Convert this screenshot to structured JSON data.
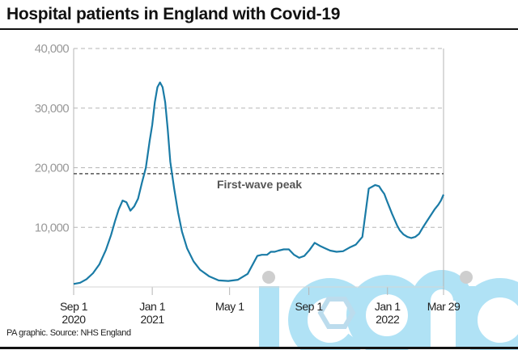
{
  "title": "Hospital patients in England with Covid-19",
  "source": "PA graphic. Source: NHS England",
  "watermark": "iconic",
  "colors": {
    "line": "#1a7ba6",
    "grid": "#b5b5b5",
    "reference": "#555555",
    "watermark": "#a8dff5"
  },
  "chart_data": {
    "type": "line",
    "title": "Hospital patients in England with Covid-19",
    "xlabel": "",
    "ylabel": "",
    "ylim": [
      0,
      40000
    ],
    "yticks": [
      {
        "value": 10000,
        "label": "10,000"
      },
      {
        "value": 20000,
        "label": "20,000"
      },
      {
        "value": 30000,
        "label": "30,000"
      },
      {
        "value": 40000,
        "label": "40,000"
      }
    ],
    "xlim_days": [
      0,
      574
    ],
    "xticks": [
      {
        "day": 0,
        "line1": "Sep 1",
        "line2": "2020"
      },
      {
        "day": 122,
        "line1": "Jan 1",
        "line2": "2021"
      },
      {
        "day": 242,
        "line1": "May 1",
        "line2": ""
      },
      {
        "day": 365,
        "line1": "Sep 1",
        "line2": ""
      },
      {
        "day": 487,
        "line1": "Jan 1",
        "line2": "2022"
      },
      {
        "day": 574,
        "line1": "Mar 29",
        "line2": ""
      }
    ],
    "grid": true,
    "reference_line": {
      "value": 19000,
      "label": "First-wave peak"
    },
    "series": [
      {
        "name": "Hospital patients",
        "x_days": [
          0,
          10,
          20,
          30,
          40,
          50,
          58,
          64,
          70,
          76,
          82,
          88,
          94,
          100,
          106,
          112,
          118,
          122,
          126,
          130,
          134,
          138,
          142,
          146,
          150,
          156,
          162,
          168,
          176,
          186,
          196,
          210,
          225,
          240,
          255,
          270,
          285,
          292,
          300,
          306,
          312,
          318,
          326,
          334,
          342,
          350,
          358,
          366,
          374,
          382,
          390,
          398,
          408,
          418,
          428,
          438,
          448,
          458,
          468,
          474,
          478,
          482,
          486,
          490,
          494,
          498,
          502,
          506,
          512,
          518,
          524,
          530,
          536,
          542,
          548,
          554,
          560,
          566,
          570,
          574
        ],
        "values": [
          500,
          700,
          1300,
          2300,
          3800,
          6200,
          8700,
          11000,
          13000,
          14500,
          14200,
          12800,
          13500,
          14800,
          17500,
          20000,
          24500,
          27200,
          31000,
          33500,
          34300,
          33500,
          31000,
          26500,
          21000,
          16500,
          12500,
          9300,
          6500,
          4300,
          2900,
          1800,
          1100,
          1000,
          1200,
          2200,
          5200,
          5400,
          5400,
          5900,
          5900,
          6100,
          6300,
          6300,
          5400,
          4900,
          5200,
          6200,
          7400,
          6900,
          6500,
          6100,
          5900,
          6000,
          6600,
          7100,
          8400,
          16500,
          17100,
          16900,
          16200,
          15600,
          14500,
          13400,
          12300,
          11300,
          10300,
          9500,
          8800,
          8400,
          8200,
          8400,
          8900,
          10000,
          11000,
          12000,
          13000,
          13800,
          14500,
          15500
        ]
      }
    ]
  }
}
